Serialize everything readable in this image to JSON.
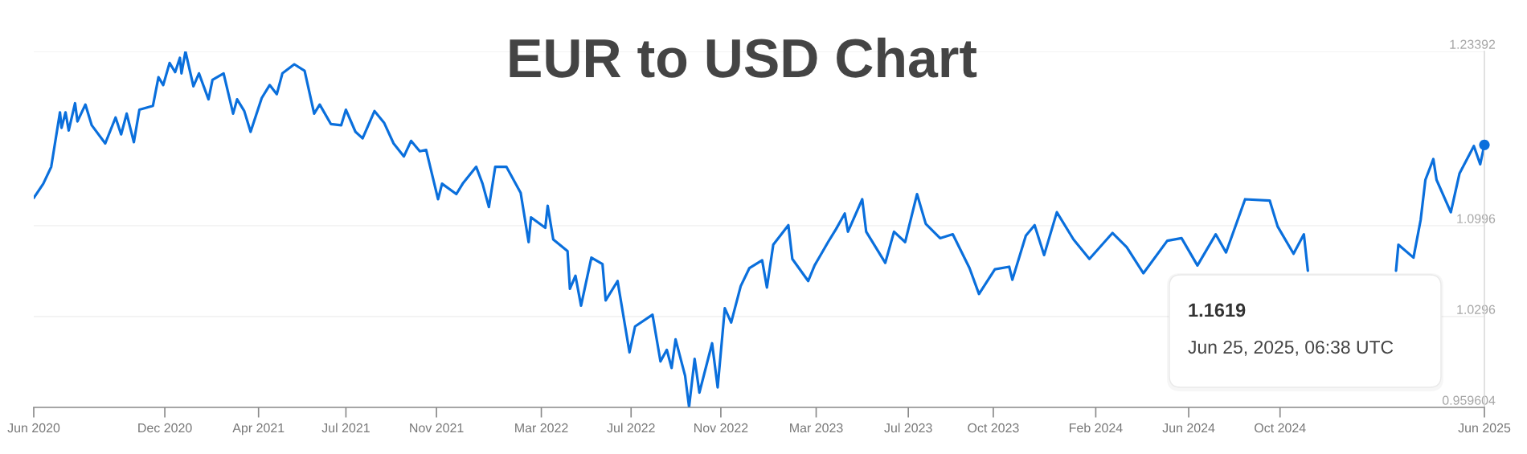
{
  "chart_data": {
    "type": "line",
    "title": "EUR to USD Chart",
    "x": [
      "2020-06-25",
      "2020-07-07",
      "2020-07-17",
      "2020-07-28",
      "2020-07-30",
      "2020-08-04",
      "2020-08-08",
      "2020-08-16",
      "2020-08-19",
      "2020-08-29",
      "2020-09-06",
      "2020-09-23",
      "2020-10-06",
      "2020-10-13",
      "2020-10-20",
      "2020-10-29",
      "2020-11-05",
      "2020-11-22",
      "2020-11-29",
      "2020-12-05",
      "2020-12-13",
      "2020-12-20",
      "2020-12-26",
      "2020-12-28",
      "2021-01-02",
      "2021-01-12",
      "2021-01-19",
      "2021-01-31",
      "2021-02-05",
      "2021-02-19",
      "2021-03-03",
      "2021-03-08",
      "2021-03-17",
      "2021-03-25",
      "2021-04-08",
      "2021-04-18",
      "2021-04-27",
      "2021-05-04",
      "2021-05-19",
      "2021-06-01",
      "2021-06-13",
      "2021-06-20",
      "2021-07-04",
      "2021-07-17",
      "2021-07-23",
      "2021-08-04",
      "2021-08-13",
      "2021-08-28",
      "2021-09-09",
      "2021-09-21",
      "2021-10-04",
      "2021-10-13",
      "2021-10-24",
      "2021-11-01",
      "2021-11-16",
      "2021-11-21",
      "2021-12-09",
      "2021-12-17",
      "2022-01-03",
      "2022-01-11",
      "2022-01-19",
      "2022-01-27",
      "2022-02-10",
      "2022-02-28",
      "2022-03-10",
      "2022-03-13",
      "2022-03-31",
      "2022-04-03",
      "2022-04-10",
      "2022-04-28",
      "2022-05-01",
      "2022-05-08",
      "2022-05-15",
      "2022-05-28",
      "2022-06-11",
      "2022-06-15",
      "2022-06-30",
      "2022-07-15",
      "2022-07-22",
      "2022-08-13",
      "2022-08-23",
      "2022-08-31",
      "2022-09-06",
      "2022-09-11",
      "2022-09-23",
      "2022-09-28",
      "2022-10-05",
      "2022-10-11",
      "2022-10-27",
      "2022-11-03",
      "2022-11-12",
      "2022-11-20",
      "2022-12-02",
      "2022-12-13",
      "2022-12-29",
      "2023-01-04",
      "2023-01-12",
      "2023-01-31",
      "2023-02-05",
      "2023-02-25",
      "2023-03-05",
      "2023-03-22",
      "2023-04-01",
      "2023-04-12",
      "2023-04-16",
      "2023-05-04",
      "2023-05-09",
      "2023-06-02",
      "2023-06-13",
      "2023-06-27",
      "2023-07-12",
      "2023-07-23",
      "2023-08-10",
      "2023-08-26",
      "2023-09-16",
      "2023-09-28",
      "2023-10-18",
      "2023-11-05",
      "2023-11-09",
      "2023-11-26",
      "2023-12-07",
      "2023-12-19",
      "2024-01-04",
      "2024-01-25",
      "2024-02-14",
      "2024-03-14",
      "2024-04-01",
      "2024-04-22",
      "2024-05-22",
      "2024-06-09",
      "2024-06-29",
      "2024-07-22",
      "2024-08-04",
      "2024-08-28",
      "2024-09-28",
      "2024-10-08",
      "2024-10-28",
      "2024-11-10",
      "2024-11-15",
      "2025-01-09",
      "2025-03-06",
      "2025-03-09",
      "2025-03-28",
      "2025-04-06",
      "2025-04-12",
      "2025-04-22",
      "2025-04-26",
      "2025-05-14",
      "2025-05-25",
      "2025-06-12",
      "2025-06-20",
      "2025-06-25T06:38"
    ],
    "series": [
      {
        "color": "#0a6fdc",
        "values": [
          1.121,
          1.132,
          1.145,
          1.187,
          1.175,
          1.187,
          1.173,
          1.194,
          1.18,
          1.193,
          1.177,
          1.163,
          1.183,
          1.17,
          1.186,
          1.164,
          1.189,
          1.192,
          1.214,
          1.208,
          1.225,
          1.218,
          1.229,
          1.217,
          1.2339,
          1.207,
          1.217,
          1.197,
          1.212,
          1.217,
          1.186,
          1.197,
          1.188,
          1.172,
          1.198,
          1.208,
          1.201,
          1.217,
          1.224,
          1.219,
          1.186,
          1.193,
          1.178,
          1.177,
          1.189,
          1.172,
          1.167,
          1.188,
          1.179,
          1.163,
          1.153,
          1.165,
          1.157,
          1.158,
          1.12,
          1.132,
          1.124,
          1.132,
          1.145,
          1.132,
          1.114,
          1.145,
          1.145,
          1.125,
          1.087,
          1.106,
          1.098,
          1.115,
          1.089,
          1.08,
          1.051,
          1.061,
          1.038,
          1.075,
          1.07,
          1.042,
          1.057,
          1.002,
          1.022,
          1.031,
          0.995,
          1.004,
          0.99,
          1.012,
          0.984,
          0.96,
          0.997,
          0.971,
          1.009,
          0.975,
          1.036,
          1.025,
          1.053,
          1.067,
          1.073,
          1.052,
          1.085,
          1.1,
          1.074,
          1.057,
          1.069,
          1.087,
          1.097,
          1.109,
          1.095,
          1.12,
          1.095,
          1.071,
          1.095,
          1.087,
          1.124,
          1.101,
          1.09,
          1.093,
          1.067,
          1.047,
          1.066,
          1.068,
          1.058,
          1.092,
          1.1,
          1.077,
          1.11,
          1.089,
          1.074,
          1.094,
          1.083,
          1.063,
          1.088,
          1.09,
          1.069,
          1.093,
          1.079,
          1.12,
          1.119,
          1.099,
          1.078,
          1.093,
          1.065,
          null,
          1.065,
          1.085,
          1.075,
          1.104,
          1.135,
          1.151,
          1.135,
          1.11,
          1.14,
          1.161,
          1.147,
          1.1619
        ]
      },
      {
        "type": "scatter",
        "color": "#0a6fdc",
        "marker": "circle",
        "x": [
          "2025-06-25T06:38"
        ],
        "values": [
          1.1619
        ]
      }
    ],
    "xlim": [
      "2020-06-25",
      "2025-06-25T06:38"
    ],
    "xticks": [
      {
        "value": "2020-06-25",
        "label": "Jun 2020"
      },
      {
        "value": "2020-12-07",
        "label": "Dec 2020"
      },
      {
        "value": "2021-04-04",
        "label": "Apr 2021"
      },
      {
        "value": "2021-07-23",
        "label": "Jul 2021"
      },
      {
        "value": "2021-11-14",
        "label": "Nov 2021"
      },
      {
        "value": "2022-03-26",
        "label": "Mar 2022"
      },
      {
        "value": "2022-07-17",
        "label": "Jul 2022"
      },
      {
        "value": "2022-11-07",
        "label": "Nov 2022"
      },
      {
        "value": "2023-03-07",
        "label": "Mar 2023"
      },
      {
        "value": "2023-07-01",
        "label": "Jul 2023"
      },
      {
        "value": "2023-10-16",
        "label": "Oct 2023"
      },
      {
        "value": "2024-02-22",
        "label": "Feb 2024"
      },
      {
        "value": "2024-06-18",
        "label": "Jun 2024"
      },
      {
        "value": "2024-10-11",
        "label": "Oct 2024"
      },
      {
        "value": "2025-06-25T06:38",
        "label": "Jun 2025"
      }
    ],
    "ylim": [
      0.959604,
      1.23392
    ],
    "yticks": [
      0.959604,
      1.0296,
      1.0996,
      1.23392
    ],
    "grid": "y",
    "annotations": [
      "1.1619",
      "Jun 25, 2025, 06:38 UTC"
    ]
  }
}
